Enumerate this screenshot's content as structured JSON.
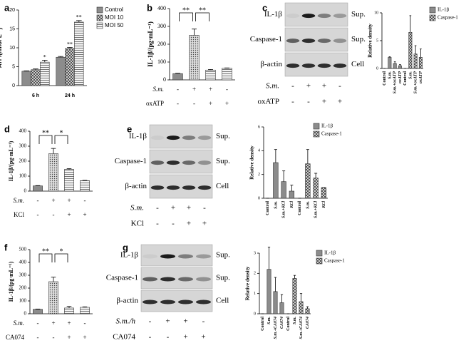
{
  "panel_labels": [
    "a",
    "b",
    "c",
    "d",
    "e",
    "f",
    "g"
  ],
  "chart_data": [
    {
      "type": "bar",
      "ylabel": "ATP/(nmol·L⁻¹)",
      "categories": [
        "6 h",
        "24 h"
      ],
      "series": [
        {
          "name": "Control",
          "color": "#8c8c8c",
          "pattern": "solid",
          "values": [
            3.8,
            7.5
          ],
          "errors": [
            0.1,
            0.2
          ]
        },
        {
          "name": "MOI 10",
          "color": "#444444",
          "pattern": "crosshatch",
          "values": [
            4.2,
            9.8
          ],
          "errors": [
            0.2,
            0.3
          ]
        },
        {
          "name": "MOI 50",
          "color": "#444444",
          "pattern": "lines",
          "values": [
            6.2,
            16.8
          ],
          "errors": [
            0.5,
            0.4
          ]
        }
      ],
      "ylim": [
        0,
        20
      ],
      "yticks": [
        0,
        5,
        10,
        15,
        20
      ],
      "annotations": [
        {
          "label": "*",
          "series": 2,
          "category": 0
        },
        {
          "label": "**",
          "series": 1,
          "category": 1
        },
        {
          "label": "**",
          "series": 2,
          "category": 1
        }
      ]
    },
    {
      "type": "bar",
      "ylabel": "IL-1β/(pg·mL⁻¹)",
      "values": [
        35,
        250,
        55,
        65
      ],
      "errors": [
        2,
        35,
        3,
        2
      ],
      "colors": [
        "#8c8c8c",
        "#bdbdbd",
        "#d9d9d9",
        "#cfcfcf"
      ],
      "patterns": [
        "solid",
        "dots",
        "lines",
        "lines"
      ],
      "ylim": [
        0,
        400
      ],
      "yticks": [
        0,
        100,
        200,
        300,
        400
      ],
      "conditions": [
        {
          "label": "S.m.",
          "signs": [
            "-",
            "+",
            "+",
            "-"
          ]
        },
        {
          "label": "oxATP",
          "signs": [
            "-",
            "-",
            "+",
            "+"
          ]
        }
      ],
      "brackets": [
        {
          "label": "**",
          "between": [
            0,
            1
          ]
        },
        {
          "label": "**",
          "between": [
            1,
            2
          ]
        }
      ]
    },
    {
      "type": "bar",
      "ylabel": "Relative density",
      "categories": [
        "Control",
        "S.m.",
        "S.m.+oxATP",
        "oxATP",
        "Control",
        "S.m.",
        "S.m.+oxATP",
        "oxATP"
      ],
      "series": [
        {
          "name": "IL-1β",
          "color": "#8c8c8c",
          "pattern": "solid",
          "values": [
            0,
            2.0,
            0.9,
            0.5,
            null,
            null,
            null,
            null
          ],
          "errors": [
            0,
            0.1,
            0.3,
            0.2,
            null,
            null,
            null,
            null
          ]
        },
        {
          "name": "Caspase-1",
          "color": "#444444",
          "pattern": "crosshatch",
          "values": [
            null,
            null,
            null,
            null,
            0,
            6.5,
            2.6,
            2.0
          ],
          "errors": [
            null,
            null,
            null,
            null,
            0,
            3.0,
            1.5,
            1.5
          ]
        }
      ],
      "ylim": [
        0,
        10
      ],
      "yticks": [
        0,
        5,
        10
      ]
    },
    {
      "type": "bar",
      "ylabel": "IL-1β/(pg·mL⁻¹)",
      "values": [
        35,
        250,
        145,
        70
      ],
      "errors": [
        2,
        35,
        5,
        2
      ],
      "colors": [
        "#8c8c8c",
        "#bdbdbd",
        "#d9d9d9",
        "#cfcfcf"
      ],
      "patterns": [
        "solid",
        "dots",
        "lines",
        "lines"
      ],
      "ylim": [
        0,
        400
      ],
      "yticks": [
        0,
        100,
        200,
        300,
        400
      ],
      "conditions": [
        {
          "label": "S.m.",
          "signs": [
            "-",
            "+",
            "+",
            "-"
          ]
        },
        {
          "label": "KCl",
          "signs": [
            "-",
            "-",
            "+",
            "+"
          ]
        }
      ],
      "brackets": [
        {
          "label": "**",
          "between": [
            0,
            1
          ]
        },
        {
          "label": "*",
          "between": [
            1,
            2
          ]
        }
      ]
    },
    {
      "type": "bar",
      "ylabel": "Relative density",
      "categories": [
        "Control",
        "S.m.",
        "S.m.+KCl",
        "KCl",
        "Control",
        "S.m.",
        "S.m.+KCl",
        "KCl"
      ],
      "series": [
        {
          "name": "IL-1β",
          "color": "#8c8c8c",
          "pattern": "solid",
          "values": [
            0,
            3.0,
            1.4,
            0.6,
            null,
            null,
            null,
            null
          ],
          "errors": [
            0,
            1.1,
            0.9,
            0.5,
            null,
            null,
            null,
            null
          ]
        },
        {
          "name": "Caspase-1",
          "color": "#444444",
          "pattern": "crosshatch",
          "values": [
            null,
            null,
            null,
            null,
            0,
            2.9,
            1.7,
            0.9
          ],
          "errors": [
            null,
            null,
            null,
            null,
            0,
            1.2,
            0.4,
            0
          ]
        }
      ],
      "ylim": [
        0,
        6
      ],
      "yticks": [
        0,
        2,
        4,
        6
      ]
    },
    {
      "type": "bar",
      "ylabel": "IL-1β/(pg·mL⁻¹)",
      "values": [
        35,
        250,
        45,
        50
      ],
      "errors": [
        2,
        35,
        12,
        4
      ],
      "colors": [
        "#8c8c8c",
        "#bdbdbd",
        "#d9d9d9",
        "#cfcfcf"
      ],
      "patterns": [
        "solid",
        "dots",
        "lines",
        "lines"
      ],
      "ylim": [
        0,
        500
      ],
      "yticks": [
        0,
        100,
        200,
        300,
        400,
        500
      ],
      "conditions": [
        {
          "label": "S.m.",
          "signs": [
            "-",
            "+",
            "+",
            "-"
          ]
        },
        {
          "label": "CA074",
          "signs": [
            "-",
            "-",
            "+",
            "+"
          ]
        }
      ],
      "brackets": [
        {
          "label": "**",
          "between": [
            0,
            1
          ]
        },
        {
          "label": "*",
          "between": [
            1,
            2
          ]
        }
      ]
    },
    {
      "type": "bar",
      "ylabel": "Relative density",
      "categories": [
        "Control",
        "S.m.",
        "S.m.+CA074",
        "CA074",
        "Control",
        "S.m.",
        "S.m.+CA074",
        "CA074"
      ],
      "series": [
        {
          "name": "IL-1β",
          "color": "#8c8c8c",
          "pattern": "solid",
          "values": [
            0,
            2.2,
            1.1,
            0.55,
            null,
            null,
            null,
            null
          ],
          "errors": [
            0,
            1.1,
            0.7,
            0.4,
            null,
            null,
            null,
            null
          ]
        },
        {
          "name": "Caspase-1",
          "color": "#444444",
          "pattern": "crosshatch",
          "values": [
            null,
            null,
            null,
            null,
            0,
            1.75,
            0.6,
            0.25
          ],
          "errors": [
            null,
            null,
            null,
            null,
            0,
            0.15,
            0.4,
            0.1
          ]
        }
      ],
      "ylim": [
        0,
        3
      ],
      "yticks": [
        0,
        1,
        2,
        3
      ]
    }
  ],
  "blots": [
    {
      "rows": [
        {
          "name": "IL-1β",
          "fraction": "Sup."
        },
        {
          "name": "Caspase-1",
          "fraction": "Sup."
        },
        {
          "name": "β-actin",
          "fraction": "Cell"
        }
      ],
      "conditions": [
        {
          "label": "S.m.",
          "signs": [
            "-",
            "+",
            "+",
            "-"
          ]
        },
        {
          "label": "oxATP",
          "signs": [
            "-",
            "-",
            "+",
            "+"
          ]
        }
      ]
    },
    {
      "rows": [
        {
          "name": "IL-1β",
          "fraction": "Sup."
        },
        {
          "name": "Caspase-1",
          "fraction": "Sup."
        },
        {
          "name": "β-actin",
          "fraction": "Cell"
        }
      ],
      "conditions": [
        {
          "label": "S.m.",
          "signs": [
            "-",
            "+",
            "+",
            "-"
          ]
        },
        {
          "label": "KCl",
          "signs": [
            "-",
            "-",
            "+",
            "+"
          ]
        }
      ]
    },
    {
      "rows": [
        {
          "name": "IL-1β",
          "fraction": "Sup."
        },
        {
          "name": "Caspase-1",
          "fraction": "Sup."
        },
        {
          "name": "β-actin",
          "fraction": "Cell"
        }
      ],
      "conditions": [
        {
          "label": "S.m./h",
          "signs": [
            "-",
            "+",
            "+",
            "-"
          ]
        },
        {
          "label": "CA074",
          "signs": [
            "-",
            "-",
            "+",
            "+"
          ]
        }
      ]
    }
  ]
}
